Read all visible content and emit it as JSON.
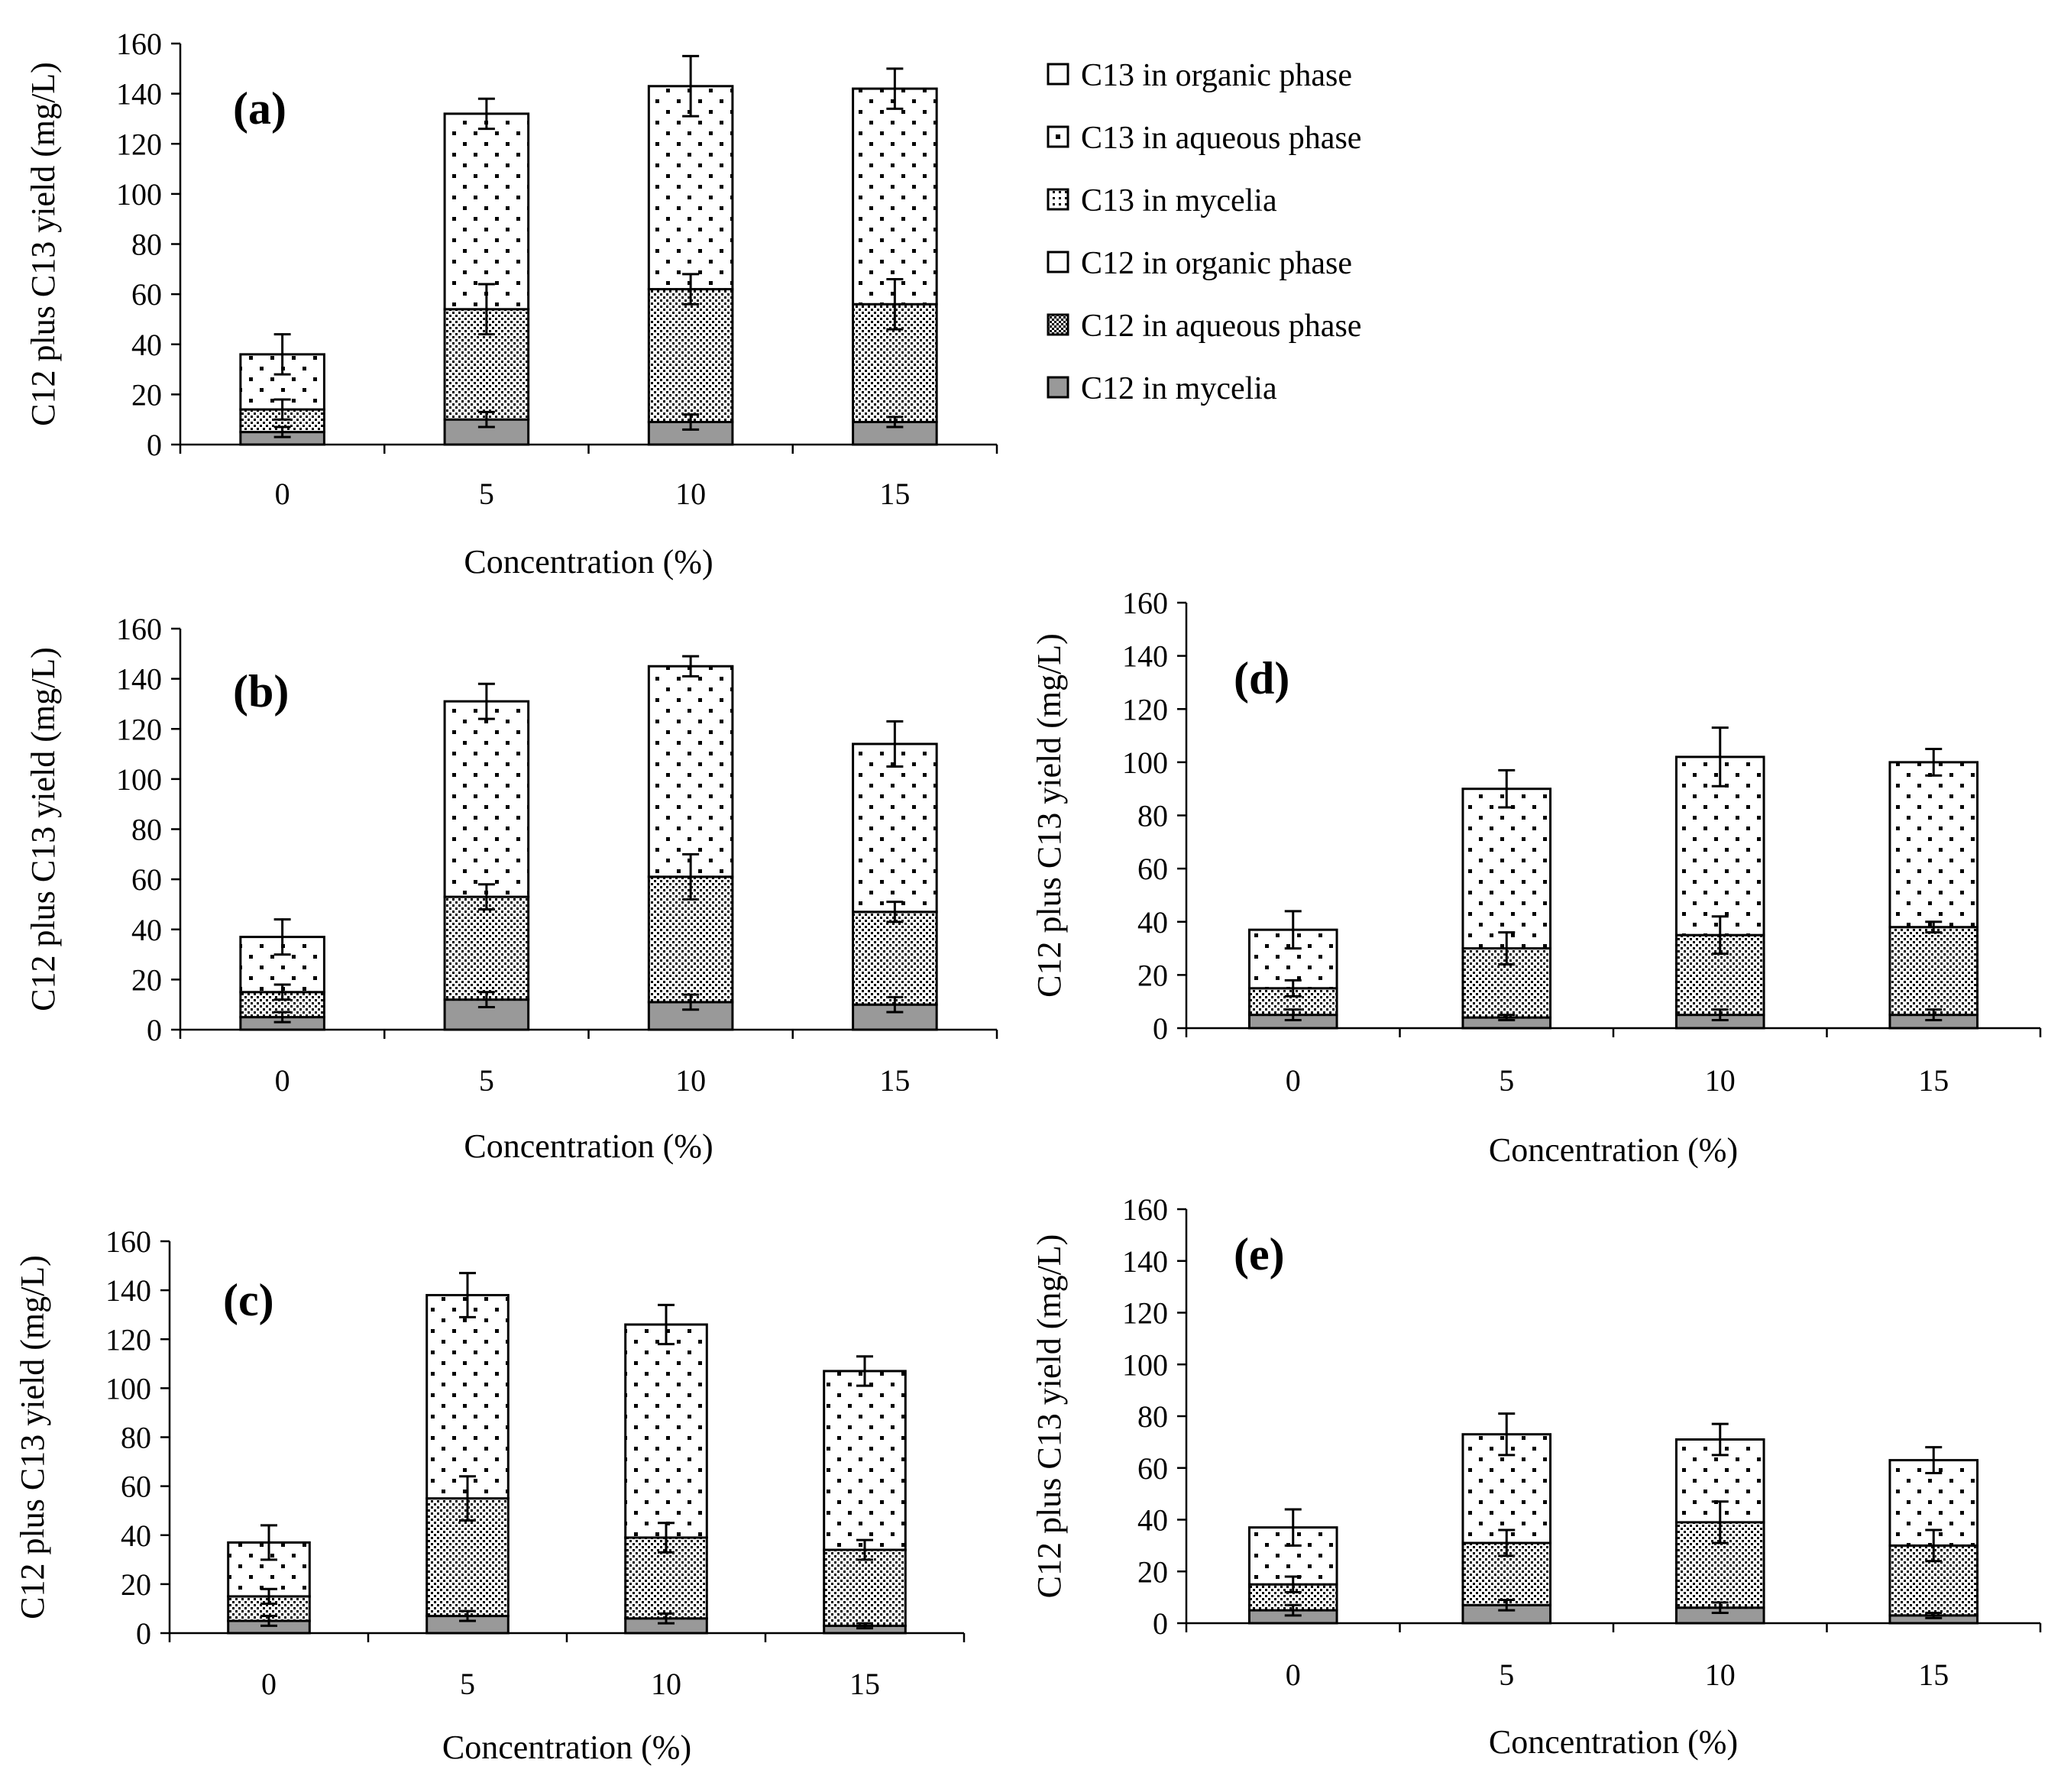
{
  "legend": [
    {
      "key": "c13_org",
      "label": "C13 in organic phase"
    },
    {
      "key": "c13_aq",
      "label": "C13 in aqueous phase"
    },
    {
      "key": "c13_my",
      "label": "C13 in mycelia"
    },
    {
      "key": "c12_org",
      "label": "C12 in organic phase"
    },
    {
      "key": "c12_aq",
      "label": "C12 in aqueous phase"
    },
    {
      "key": "c12_my",
      "label": "C12 in mycelia"
    }
  ],
  "colors": {
    "mycelia": "#999999",
    "edge": "#000000",
    "background": "#ffffff"
  },
  "chart_data": [
    {
      "type": "bar",
      "stacked": true,
      "panel": "(a)",
      "title": "",
      "xlabel": "Concentration (%)",
      "ylabel": "C12 plus C13 yield (mg/L)",
      "categories": [
        "0",
        "5",
        "10",
        "15"
      ],
      "ylim": [
        0,
        160
      ],
      "yticks": [
        "0",
        "20",
        "40",
        "60",
        "80",
        "100",
        "120",
        "140",
        "160"
      ],
      "series": [
        {
          "name": "C12 in mycelia",
          "values": [
            5,
            10,
            9,
            9
          ],
          "errors": [
            2,
            3,
            3,
            2
          ]
        },
        {
          "name": "C12 in aqueous phase",
          "values": [
            9,
            44,
            53,
            47
          ],
          "errors": [
            4,
            10,
            6,
            10
          ]
        },
        {
          "name": "C13 in aqueous phase",
          "values": [
            22,
            78,
            81,
            86
          ],
          "errors": [
            8,
            6,
            12,
            8
          ]
        }
      ]
    },
    {
      "type": "bar",
      "stacked": true,
      "panel": "(b)",
      "title": "",
      "xlabel": "Concentration (%)",
      "ylabel": "C12 plus C13 yield (mg/L)",
      "categories": [
        "0",
        "5",
        "10",
        "15"
      ],
      "ylim": [
        0,
        160
      ],
      "yticks": [
        "0",
        "20",
        "40",
        "60",
        "80",
        "100",
        "120",
        "140",
        "160"
      ],
      "series": [
        {
          "name": "C12 in mycelia",
          "values": [
            5,
            12,
            11,
            10
          ],
          "errors": [
            2,
            3,
            3,
            3
          ]
        },
        {
          "name": "C12 in aqueous phase",
          "values": [
            10,
            41,
            50,
            37
          ],
          "errors": [
            3,
            5,
            9,
            4
          ]
        },
        {
          "name": "C13 in aqueous phase",
          "values": [
            22,
            78,
            84,
            67
          ],
          "errors": [
            7,
            7,
            4,
            9
          ]
        }
      ]
    },
    {
      "type": "bar",
      "stacked": true,
      "panel": "(c)",
      "title": "",
      "xlabel": "Concentration (%)",
      "ylabel": "C12 plus C13 yield (mg/L)",
      "categories": [
        "0",
        "5",
        "10",
        "15"
      ],
      "ylim": [
        0,
        160
      ],
      "yticks": [
        "0",
        "20",
        "40",
        "60",
        "80",
        "100",
        "120",
        "140",
        "160"
      ],
      "series": [
        {
          "name": "C12 in mycelia",
          "values": [
            5,
            7,
            6,
            3
          ],
          "errors": [
            2,
            2,
            2,
            1
          ]
        },
        {
          "name": "C12 in aqueous phase",
          "values": [
            10,
            48,
            33,
            31
          ],
          "errors": [
            3,
            9,
            6,
            4
          ]
        },
        {
          "name": "C13 in aqueous phase",
          "values": [
            22,
            83,
            87,
            73
          ],
          "errors": [
            7,
            9,
            8,
            6
          ]
        }
      ]
    },
    {
      "type": "bar",
      "stacked": true,
      "panel": "(d)",
      "title": "",
      "xlabel": "Concentration (%)",
      "ylabel": "C12 plus C13 yield (mg/L)",
      "categories": [
        "0",
        "5",
        "10",
        "15"
      ],
      "ylim": [
        0,
        160
      ],
      "yticks": [
        "0",
        "20",
        "40",
        "60",
        "80",
        "100",
        "120",
        "140",
        "160"
      ],
      "series": [
        {
          "name": "C12 in mycelia",
          "values": [
            5,
            4,
            5,
            5
          ],
          "errors": [
            2,
            1,
            2,
            2
          ]
        },
        {
          "name": "C12 in aqueous phase",
          "values": [
            10,
            26,
            30,
            33
          ],
          "errors": [
            3,
            6,
            7,
            2
          ]
        },
        {
          "name": "C13 in aqueous phase",
          "values": [
            22,
            60,
            67,
            62
          ],
          "errors": [
            7,
            7,
            11,
            5
          ]
        }
      ]
    },
    {
      "type": "bar",
      "stacked": true,
      "panel": "(e)",
      "title": "",
      "xlabel": "Concentration (%)",
      "ylabel": "C12 plus C13 yield (mg/L)",
      "categories": [
        "0",
        "5",
        "10",
        "15"
      ],
      "ylim": [
        0,
        160
      ],
      "yticks": [
        "0",
        "20",
        "40",
        "60",
        "80",
        "100",
        "120",
        "140",
        "160"
      ],
      "series": [
        {
          "name": "C12 in mycelia",
          "values": [
            5,
            7,
            6,
            3
          ],
          "errors": [
            2,
            2,
            2,
            1
          ]
        },
        {
          "name": "C12 in aqueous phase",
          "values": [
            10,
            24,
            33,
            27
          ],
          "errors": [
            3,
            5,
            8,
            6
          ]
        },
        {
          "name": "C13 in aqueous phase",
          "values": [
            22,
            42,
            32,
            33
          ],
          "errors": [
            7,
            8,
            6,
            5
          ]
        }
      ]
    }
  ]
}
